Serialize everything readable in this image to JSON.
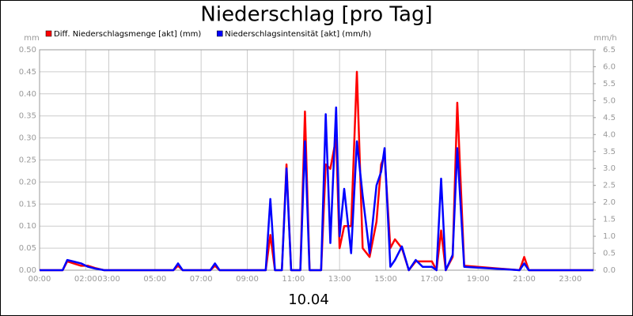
{
  "chart_data": {
    "type": "line",
    "title": "Niederschlag [pro Tag]",
    "x_label": "10.04",
    "y_label": "mm",
    "y2_label": "mm/h",
    "legend": "top-left",
    "grid": true,
    "xlim": [
      0,
      24
    ],
    "xticks": [
      {
        "value": 0,
        "label": "00:00"
      },
      {
        "value": 2,
        "label": "02:00"
      },
      {
        "value": 3,
        "label": "03:00"
      },
      {
        "value": 5,
        "label": "05:00"
      },
      {
        "value": 7,
        "label": "07:00"
      },
      {
        "value": 9,
        "label": "09:00"
      },
      {
        "value": 11,
        "label": "11:00"
      },
      {
        "value": 13,
        "label": "13:00"
      },
      {
        "value": 15,
        "label": "15:00"
      },
      {
        "value": 17,
        "label": "17:00"
      },
      {
        "value": 19,
        "label": "19:00"
      },
      {
        "value": 21,
        "label": "21:00"
      },
      {
        "value": 23,
        "label": "23:00"
      }
    ],
    "ylim": [
      0,
      0.5
    ],
    "yticks": [
      {
        "value": 0,
        "label": "0.00"
      },
      0.05,
      {
        "value": 0.1,
        "label": "0.10"
      },
      0.15,
      {
        "value": 0.2,
        "label": "0.20"
      },
      0.25,
      {
        "value": 0.3,
        "label": "0.30"
      },
      0.35,
      {
        "value": 0.4,
        "label": "0.40"
      },
      0.45,
      {
        "value": 0.5,
        "label": "0.50"
      }
    ],
    "y2lim": [
      0,
      6.5
    ],
    "y2ticks": [
      {
        "value": 0,
        "label": "0.0"
      },
      0.5,
      {
        "value": 1,
        "label": "1.0"
      },
      1.5,
      {
        "value": 2,
        "label": "2.0"
      },
      2.5,
      {
        "value": 3,
        "label": "3.0"
      },
      3.5,
      {
        "value": 4,
        "label": "4.0"
      },
      4.5,
      {
        "value": 5,
        "label": "5.0"
      },
      5.5,
      {
        "value": 6,
        "label": "6.0"
      },
      6.5
    ],
    "x": [
      0,
      1.0,
      1.2,
      1.5,
      1.8,
      2.1,
      2.4,
      2.8,
      5.8,
      6.0,
      6.2,
      7.4,
      7.6,
      7.8,
      9.8,
      10.0,
      10.2,
      10.5,
      10.7,
      10.9,
      11.3,
      11.5,
      11.7,
      12.2,
      12.4,
      12.6,
      12.85,
      13.0,
      13.2,
      13.5,
      13.75,
      14.0,
      14.3,
      14.6,
      14.8,
      14.95,
      15.2,
      15.4,
      15.7,
      16.0,
      16.3,
      16.6,
      17.0,
      17.2,
      17.4,
      17.6,
      17.9,
      18.1,
      18.4,
      20.8,
      21.0,
      21.2,
      24
    ],
    "series": [
      {
        "name": "Diff. Niederschlagsmenge [akt] (mm)",
        "color": "#ff0000",
        "values": [
          0,
          0,
          0.02,
          0.015,
          0.01,
          0.01,
          0.005,
          0,
          0,
          0.01,
          0,
          0,
          0.01,
          0,
          0,
          0.08,
          0,
          0,
          0.24,
          0,
          0,
          0.36,
          0,
          0,
          0.24,
          0.23,
          0.3,
          0.05,
          0.1,
          0.1,
          0.45,
          0.05,
          0.03,
          0.11,
          0.24,
          0.26,
          0.05,
          0.07,
          0.05,
          0,
          0.02,
          0.02,
          0.02,
          0,
          0.09,
          0,
          0.03,
          0.38,
          0.01,
          0,
          0.03,
          0,
          0
        ]
      },
      {
        "name": "Niederschlagsintensität [akt] (mm/h)",
        "color": "#0000ff",
        "axis": "y2",
        "values": [
          0,
          0,
          0.3,
          0.25,
          0.2,
          0.1,
          0.05,
          0,
          0,
          0.2,
          0,
          0,
          0.2,
          0,
          0,
          2.1,
          0,
          0,
          3.0,
          0,
          0,
          3.8,
          0,
          0,
          4.6,
          0.8,
          4.8,
          1.0,
          2.4,
          0.5,
          3.8,
          2.2,
          0.5,
          2.5,
          2.9,
          3.6,
          0.1,
          0.3,
          0.7,
          0,
          0.3,
          0.1,
          0.1,
          0,
          2.7,
          0,
          0.45,
          3.6,
          0.1,
          0,
          0.2,
          0,
          0
        ]
      }
    ]
  }
}
